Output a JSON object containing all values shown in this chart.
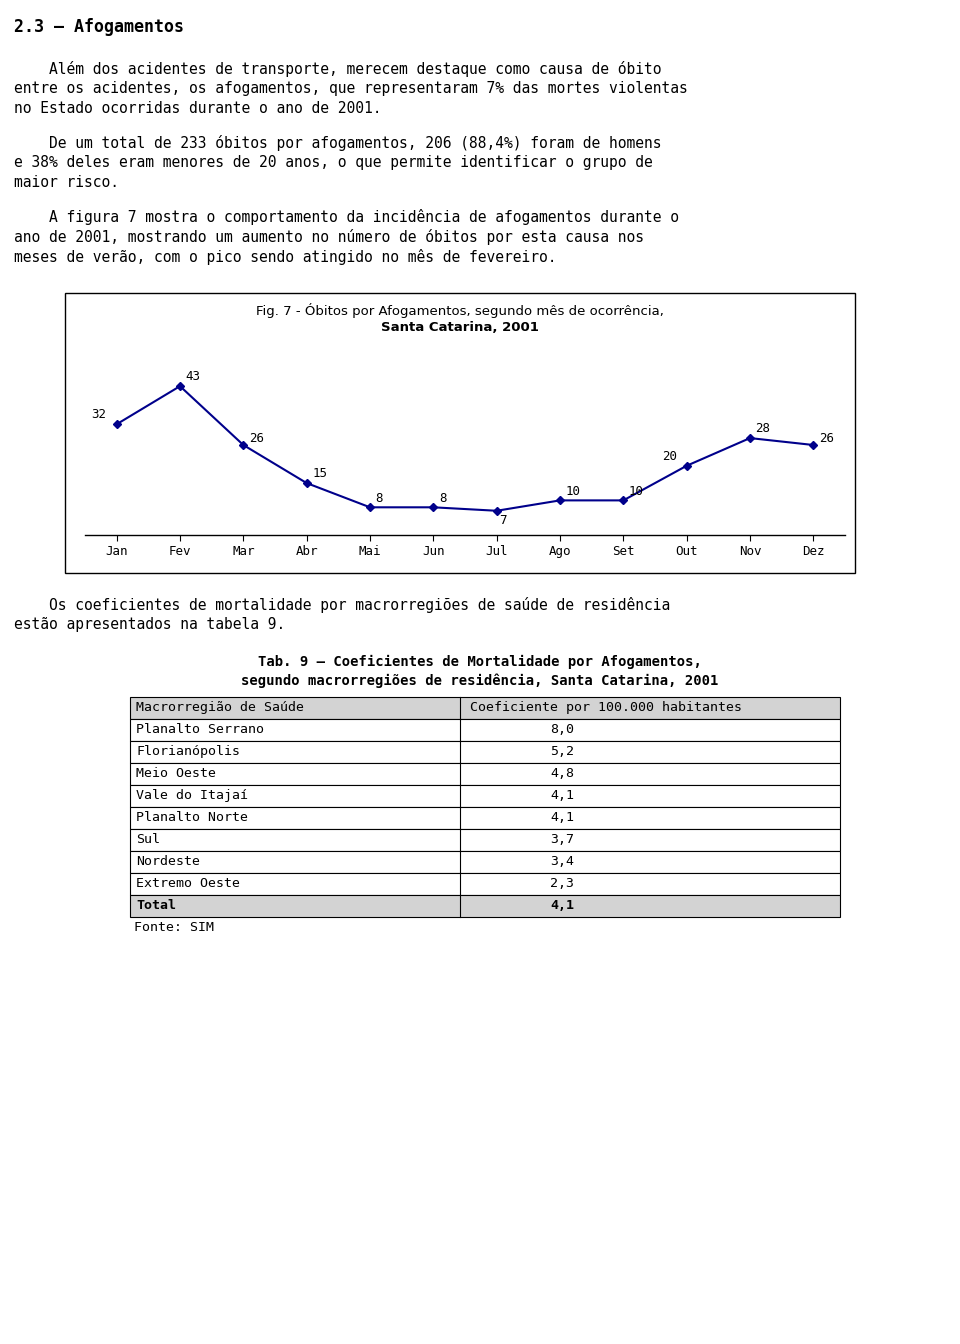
{
  "title_section": "2.3 – Afogamentos",
  "para1_lines": [
    "    Além dos acidentes de transporte, merecem destaque como causa de óbito",
    "entre os acidentes, os afogamentos, que representaram 7% das mortes violentas",
    "no Estado ocorridas durante o ano de 2001."
  ],
  "para2_lines": [
    "    De um total de 233 óbitos por afogamentos, 206 (88,4%) foram de homens",
    "e 38% deles eram menores de 20 anos, o que permite identificar o grupo de",
    "maior risco."
  ],
  "para3_lines": [
    "    A figura 7 mostra o comportamento da incidência de afogamentos durante o",
    "ano de 2001, mostrando um aumento no número de óbitos por esta causa nos",
    "meses de verão, com o pico sendo atingido no mês de fevereiro."
  ],
  "chart_title_line1": "Fig. 7 - Óbitos por Afogamentos, segundo mês de ocorrência,",
  "chart_title_line2": "Santa Catarina, 2001",
  "months": [
    "Jan",
    "Fev",
    "Mar",
    "Abr",
    "Mai",
    "Jun",
    "Jul",
    "Ago",
    "Set",
    "Out",
    "Nov",
    "Dez"
  ],
  "values": [
    32,
    43,
    26,
    15,
    8,
    8,
    7,
    10,
    10,
    20,
    28,
    26
  ],
  "line_color": "#00008B",
  "para4_lines": [
    "    Os coeficientes de mortalidade por macrorregiões de saúde de residência",
    "estão apresentados na tabela 9."
  ],
  "table_title_line1": "Tab. 9 – Coeficientes de Mortalidade por Afogamentos,",
  "table_title_line2": "segundo macrorregiões de residência, Santa Catarina, 2001",
  "table_header": [
    "Macrorregião de Saúde",
    "Coeficiente por 100.000 habitantes"
  ],
  "table_rows": [
    [
      "Planalto Serrano",
      "8,0"
    ],
    [
      "Florianópolis",
      "5,2"
    ],
    [
      "Meio Oeste",
      "4,8"
    ],
    [
      "Vale do Itajaí",
      "4,1"
    ],
    [
      "Planalto Norte",
      "4,1"
    ],
    [
      "Sul",
      "3,7"
    ],
    [
      "Nordeste",
      "3,4"
    ],
    [
      "Extremo Oeste",
      "2,3"
    ],
    [
      "Total",
      "4,1"
    ]
  ],
  "table_footer": "Fonte: SIM",
  "header_bg": "#D3D3D3",
  "total_bg": "#D3D3D3",
  "bg_color": "#FFFFFF"
}
